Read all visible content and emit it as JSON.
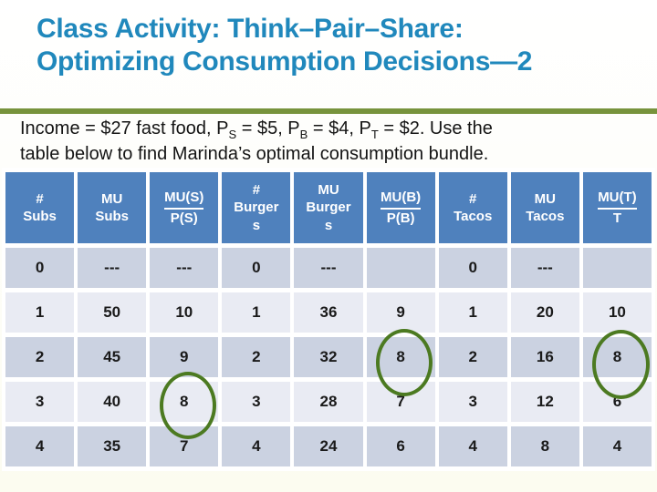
{
  "title": {
    "line1": "Class Activity: Think–Pair–Share:",
    "line2": "Optimizing Consumption Decisions—2"
  },
  "intro": {
    "seg1": "Income = $27 fast food, P",
    "sub1": "S",
    "seg2": " = $5, P",
    "sub2": "B",
    "seg3": " = $4, P",
    "sub3": "T",
    "seg4": " = $2. Use the",
    "seg5": "table below to find Marinda’s optimal consumption bundle."
  },
  "table": {
    "columns": [
      {
        "label": "#\nSubs"
      },
      {
        "label": "MU\nSubs"
      },
      {
        "num": "MU(S)",
        "den": "P(S)"
      },
      {
        "label": "#\nBurger\ns"
      },
      {
        "label": "MU\nBurger\ns"
      },
      {
        "num": "MU(B)",
        "den": "P(B)"
      },
      {
        "label": "#\nTacos"
      },
      {
        "label": "MU\nTacos"
      },
      {
        "num": "MU(T)",
        "den": "T"
      }
    ],
    "rows": [
      [
        "0",
        "---",
        "---",
        "0",
        "---",
        "",
        "0",
        "---",
        ""
      ],
      [
        "1",
        "50",
        "10",
        "1",
        "36",
        "9",
        "1",
        "20",
        "10"
      ],
      [
        "2",
        "45",
        "9",
        "2",
        "32",
        "8",
        "2",
        "16",
        "8"
      ],
      [
        "3",
        "40",
        "8",
        "3",
        "28",
        "7",
        "3",
        "12",
        "6"
      ],
      [
        "4",
        "35",
        "7",
        "4",
        "24",
        "6",
        "4",
        "8",
        "4"
      ]
    ]
  },
  "annotations": {
    "circled_values": [
      {
        "column": "MU(S)/P(S)",
        "at_quantity": 3,
        "value": "8"
      },
      {
        "column": "MU(B)/P(B)",
        "at_quantity": 2,
        "value": "8"
      },
      {
        "column": "MU(T)/T",
        "at_quantity": 2,
        "value": "8"
      }
    ]
  },
  "colors": {
    "title_blue": "#2088BC",
    "header_blue": "#4F81BD",
    "band_dark": "#CBD2E1",
    "band_light": "#E9EBF3",
    "value_red": "#A42222",
    "rule_green": "#77933C",
    "circle_green": "#4C7A21"
  }
}
